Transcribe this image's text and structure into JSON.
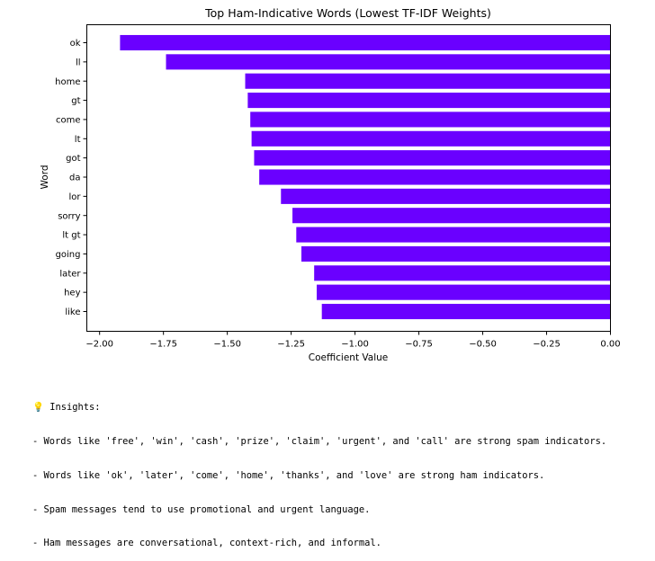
{
  "chart_data": {
    "type": "bar",
    "orientation": "horizontal",
    "title": "Top Ham-Indicative Words (Lowest TF-IDF Weights)",
    "xlabel": "Coefficient Value",
    "ylabel": "Word",
    "categories": [
      "ok",
      "ll",
      "home",
      "gt",
      "come",
      "lt",
      "got",
      "da",
      "lor",
      "sorry",
      "lt gt",
      "going",
      "later",
      "hey",
      "like"
    ],
    "values": [
      -1.92,
      -1.74,
      -1.43,
      -1.42,
      -1.41,
      -1.405,
      -1.395,
      -1.375,
      -1.29,
      -1.245,
      -1.23,
      -1.21,
      -1.16,
      -1.15,
      -1.13
    ],
    "xlim": [
      -2.05,
      0.0
    ],
    "xticks": [
      -2.0,
      -1.75,
      -1.5,
      -1.25,
      -1.0,
      -0.75,
      -0.5,
      -0.25,
      0.0
    ],
    "xtick_labels": [
      "−2.00",
      "−1.75",
      "−1.50",
      "−1.25",
      "−1.00",
      "−0.75",
      "−0.50",
      "−0.25",
      "0.00"
    ],
    "grid": false,
    "bar_color": "#6a00ff"
  },
  "insights": {
    "icon": "lightbulb-icon",
    "heading": " Insights:",
    "lines": [
      "- Words like 'free', 'win', 'cash', 'prize', 'claim', 'urgent', and 'call' are strong spam indicators.",
      "- Words like 'ok', 'later', 'come', 'home', 'thanks', and 'love' are strong ham indicators.",
      "- Spam messages tend to use promotional and urgent language.",
      "- Ham messages are conversational, context-rich, and informal."
    ]
  }
}
